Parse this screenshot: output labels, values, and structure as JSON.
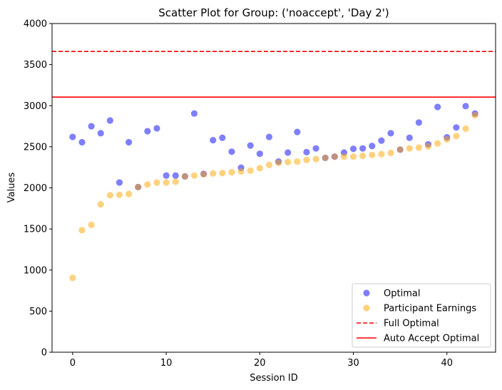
{
  "chart_data": {
    "type": "scatter",
    "title": "Scatter Plot for Group: ('noaccept', 'Day 2')",
    "xlabel": "Session ID",
    "ylabel": "Values",
    "xlim": [
      -2.2,
      45.2
    ],
    "ylim": [
      0,
      4000
    ],
    "xticks": [
      0,
      10,
      20,
      30,
      40
    ],
    "yticks": [
      0,
      500,
      1000,
      1500,
      2000,
      2500,
      3000,
      3500,
      4000
    ],
    "grid": false,
    "legend_position": "lower-right",
    "series": [
      {
        "name": "Optimal",
        "color": "#0000ff",
        "x": [
          0,
          1,
          2,
          3,
          4,
          5,
          6,
          7,
          8,
          9,
          10,
          11,
          12,
          13,
          14,
          15,
          16,
          17,
          18,
          19,
          20,
          21,
          22,
          23,
          24,
          25,
          26,
          27,
          28,
          29,
          30,
          31,
          32,
          33,
          34,
          35,
          36,
          37,
          38,
          39,
          40,
          41,
          42,
          43
        ],
        "y": [
          2620,
          2555,
          2750,
          2665,
          2820,
          2065,
          2555,
          2010,
          2690,
          2725,
          2150,
          2150,
          2140,
          2905,
          2170,
          2580,
          2610,
          2440,
          2245,
          2515,
          2415,
          2620,
          2320,
          2430,
          2680,
          2435,
          2480,
          2365,
          2380,
          2430,
          2475,
          2480,
          2510,
          2575,
          2665,
          2465,
          2610,
          2795,
          2530,
          2985,
          2615,
          2735,
          2995,
          2905
        ]
      },
      {
        "name": "Participant Earnings",
        "color": "#ffa500",
        "x": [
          0,
          1,
          2,
          3,
          4,
          5,
          6,
          7,
          8,
          9,
          10,
          11,
          12,
          13,
          14,
          15,
          16,
          17,
          18,
          19,
          20,
          21,
          22,
          23,
          24,
          25,
          26,
          27,
          28,
          29,
          30,
          31,
          32,
          33,
          34,
          35,
          36,
          37,
          38,
          39,
          40,
          41,
          42,
          43
        ],
        "y": [
          905,
          1485,
          1550,
          1800,
          1910,
          1915,
          1925,
          2010,
          2040,
          2065,
          2065,
          2075,
          2140,
          2150,
          2165,
          2175,
          2180,
          2190,
          2200,
          2210,
          2240,
          2280,
          2305,
          2315,
          2320,
          2340,
          2350,
          2365,
          2380,
          2380,
          2380,
          2390,
          2400,
          2410,
          2425,
          2465,
          2480,
          2490,
          2505,
          2540,
          2590,
          2630,
          2720,
          2885
        ]
      }
    ],
    "lines": [
      {
        "name": "Full Optimal",
        "y": 3660,
        "color": "#ff0000",
        "style": "dashed"
      },
      {
        "name": "Auto Accept Optimal",
        "y": 3105,
        "color": "#ff0000",
        "style": "solid"
      }
    ]
  }
}
